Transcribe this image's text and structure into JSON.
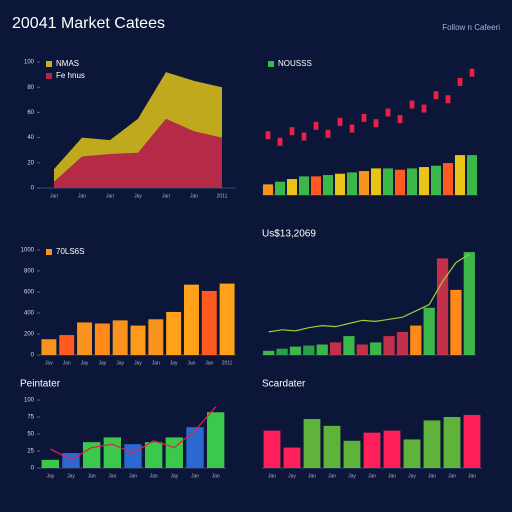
{
  "header": {
    "title": "20041 Market Catees",
    "link": "Follow n Cafeeri"
  },
  "chart_data": [
    {
      "type": "area",
      "categories": [
        "Jan",
        "Jan",
        "Jan",
        "Jay",
        "Jan",
        "Jan",
        "2011"
      ],
      "series": [
        {
          "name": "NMAS",
          "color": "#c9b21c",
          "values": [
            15,
            40,
            38,
            55,
            92,
            85,
            80
          ]
        },
        {
          "name": "Fe hnus",
          "color": "#b3234a",
          "values": [
            5,
            25,
            27,
            28,
            55,
            45,
            40
          ]
        }
      ],
      "ylim": [
        0,
        100
      ],
      "yticks": [
        0,
        20,
        40,
        60,
        80,
        100
      ],
      "grid": false
    },
    {
      "type": "bar",
      "categories": [
        null,
        null,
        null,
        null,
        null,
        null,
        null,
        null,
        null,
        null,
        null,
        null,
        null,
        null,
        null,
        null,
        null,
        null
      ],
      "series": [
        {
          "name": "NOUSSS",
          "color": "#3cb84a",
          "colors": [
            "#f7931e",
            "#3cb84a",
            "#e8c41a",
            "#3cb84a",
            "#ff5a1f",
            "#3cb84a",
            "#e8c41a",
            "#3cb84a",
            "#f7931e",
            "#e8c41a",
            "#3cb84a",
            "#ff5a1f",
            "#3cb84a",
            "#e8c41a",
            "#3cb84a",
            "#ff5a1f",
            "#e8c41a",
            "#3cb84a"
          ],
          "values": [
            8,
            10,
            12,
            14,
            14,
            15,
            16,
            17,
            18,
            20,
            20,
            19,
            20,
            21,
            22,
            24,
            30,
            30
          ]
        },
        {
          "kind": "tick",
          "color": "#e8204a",
          "values": [
            45,
            40,
            48,
            44,
            52,
            46,
            55,
            50,
            58,
            54,
            62,
            57,
            68,
            65,
            75,
            72,
            85,
            92
          ]
        }
      ],
      "ylim": [
        0,
        100
      ]
    },
    {
      "type": "bar",
      "categories": [
        "Jov",
        "Jan",
        "Jay",
        "Jay",
        "Jay",
        "Jay",
        "Jan",
        "Jay",
        "Jun",
        "Jan",
        "2011"
      ],
      "series": [
        {
          "name": "70LS6S",
          "color": "#f7931e",
          "colors": [
            "#f7931e",
            "#ff5a1f",
            "#f7931e",
            "#ff8a1a",
            "#f7931e",
            "#ff9a1a",
            "#f7931e",
            "#ffa21a",
            "#ffa21a",
            "#ff5a1f",
            "#ffa21a"
          ],
          "values": [
            150,
            190,
            310,
            300,
            330,
            280,
            340,
            410,
            670,
            610,
            680
          ]
        }
      ],
      "ylim": [
        0,
        1000
      ],
      "yticks": [
        0,
        200,
        400,
        600,
        800,
        1000
      ]
    },
    {
      "type": "bar",
      "title": "Us$13,2069",
      "categories": [
        null,
        null,
        null,
        null,
        null,
        null,
        null,
        null,
        null,
        null,
        null,
        null,
        null,
        null,
        null,
        null
      ],
      "series": [
        {
          "color": "#3cb84a",
          "colors": [
            "#3cb84a",
            "#2e9e48",
            "#3cb84a",
            "#2e9e48",
            "#3cb84a",
            "#c2304a",
            "#3cb84a",
            "#c2304a",
            "#3cb84a",
            "#c2304a",
            "#c2304a",
            "#ff8a1a",
            "#3cb84a",
            "#c2304a",
            "#ff8a1a",
            "#3cb84a"
          ],
          "values": [
            4,
            6,
            8,
            9,
            10,
            12,
            18,
            10,
            12,
            18,
            22,
            28,
            45,
            92,
            62,
            98
          ]
        },
        {
          "kind": "line",
          "color": "#9ccc3a",
          "values": [
            22,
            24,
            23,
            26,
            28,
            27,
            30,
            33,
            32,
            34,
            36,
            42,
            48,
            70,
            88,
            96
          ]
        }
      ],
      "ylim": [
        0,
        100
      ]
    },
    {
      "type": "bar",
      "title": "Peintater",
      "categories": [
        "Jay",
        "Jay",
        "Jan",
        "Jan",
        "Jan",
        "Jan",
        "Jay",
        "Jan",
        "Jan"
      ],
      "series": [
        {
          "color": "#3cc84a",
          "colors": [
            "#3cc84a",
            "#2a6ad0",
            "#3cc84a",
            "#3cc84a",
            "#2a6ad0",
            "#3cc84a",
            "#3cc84a",
            "#2a6ad0",
            "#3cc84a"
          ],
          "values": [
            12,
            22,
            38,
            45,
            35,
            38,
            45,
            60,
            82
          ]
        },
        {
          "kind": "line",
          "color": "#e8204a",
          "values": [
            28,
            12,
            30,
            35,
            22,
            40,
            30,
            55,
            90
          ]
        }
      ],
      "ylim": [
        0,
        100
      ],
      "yticks": [
        0,
        25,
        50,
        75,
        100
      ]
    },
    {
      "type": "bar",
      "title": "Scardater",
      "categories": [
        "Jan",
        "Jay",
        "Jan",
        "Jan",
        "Jay",
        "Jan",
        "Jan",
        "Jay",
        "Jan",
        "Jan",
        "Jan"
      ],
      "series": [
        {
          "color": "#ff1f5a",
          "colors": [
            "#ff1f5a",
            "#ff1f5a",
            "#5fb33a",
            "#5fb33a",
            "#5fb33a",
            "#ff1f5a",
            "#ff1f5a",
            "#5fb33a",
            "#5fb33a",
            "#5fb33a",
            "#ff1f5a"
          ],
          "values": [
            55,
            30,
            72,
            62,
            40,
            52,
            55,
            42,
            70,
            75,
            78
          ]
        }
      ],
      "ylim": [
        0,
        100
      ]
    }
  ]
}
